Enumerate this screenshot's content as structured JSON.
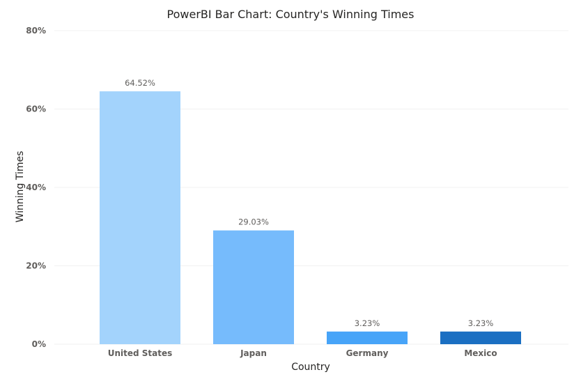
{
  "chart_data": {
    "type": "bar",
    "title": "PowerBI Bar Chart: Country's Winning Times",
    "xlabel": "Country",
    "ylabel": "Winning Times",
    "categories": [
      "United States",
      "Japan",
      "Germany",
      "Mexico"
    ],
    "values": [
      64.52,
      29.03,
      3.23,
      3.23
    ],
    "data_labels": [
      "64.52%",
      "29.03%",
      "3.23%",
      "3.23%"
    ],
    "bar_colors": [
      "#a3d3fc",
      "#76bbfc",
      "#47a4f8",
      "#1b6fc2"
    ],
    "ylim": [
      0,
      80
    ],
    "yticks": [
      0,
      20,
      40,
      60,
      80
    ],
    "ytick_labels": [
      "0%",
      "20%",
      "40%",
      "60%",
      "80%"
    ],
    "grid": true,
    "legend": "none"
  }
}
